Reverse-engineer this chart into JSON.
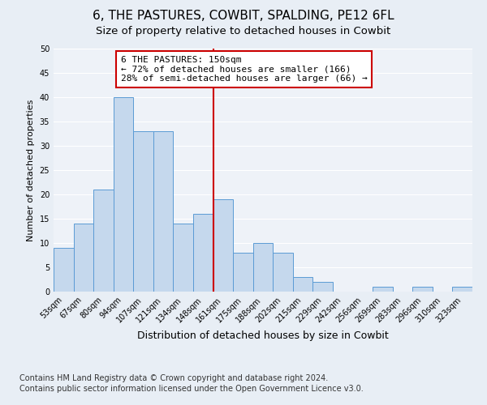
{
  "title": "6, THE PASTURES, COWBIT, SPALDING, PE12 6FL",
  "subtitle": "Size of property relative to detached houses in Cowbit",
  "xlabel": "Distribution of detached houses by size in Cowbit",
  "ylabel": "Number of detached properties",
  "bin_labels": [
    "53sqm",
    "67sqm",
    "80sqm",
    "94sqm",
    "107sqm",
    "121sqm",
    "134sqm",
    "148sqm",
    "161sqm",
    "175sqm",
    "188sqm",
    "202sqm",
    "215sqm",
    "229sqm",
    "242sqm",
    "256sqm",
    "269sqm",
    "283sqm",
    "296sqm",
    "310sqm",
    "323sqm"
  ],
  "bar_values": [
    9,
    14,
    21,
    40,
    33,
    33,
    14,
    16,
    19,
    8,
    10,
    8,
    3,
    2,
    0,
    0,
    1,
    0,
    1,
    0,
    1
  ],
  "bar_color": "#c5d8ed",
  "bar_edge_color": "#5b9bd5",
  "vline_x": 7.5,
  "vline_color": "#cc0000",
  "annotation_text": "6 THE PASTURES: 150sqm\n← 72% of detached houses are smaller (166)\n28% of semi-detached houses are larger (66) →",
  "annotation_box_color": "#ffffff",
  "annotation_box_edge_color": "#cc0000",
  "ylim": [
    0,
    50
  ],
  "yticks": [
    0,
    5,
    10,
    15,
    20,
    25,
    30,
    35,
    40,
    45,
    50
  ],
  "footer_line1": "Contains HM Land Registry data © Crown copyright and database right 2024.",
  "footer_line2": "Contains public sector information licensed under the Open Government Licence v3.0.",
  "bg_color": "#e8eef5",
  "plot_bg_color": "#eef2f8",
  "grid_color": "#ffffff",
  "title_fontsize": 11,
  "subtitle_fontsize": 9.5,
  "xlabel_fontsize": 9,
  "ylabel_fontsize": 8,
  "tick_fontsize": 7,
  "footer_fontsize": 7
}
